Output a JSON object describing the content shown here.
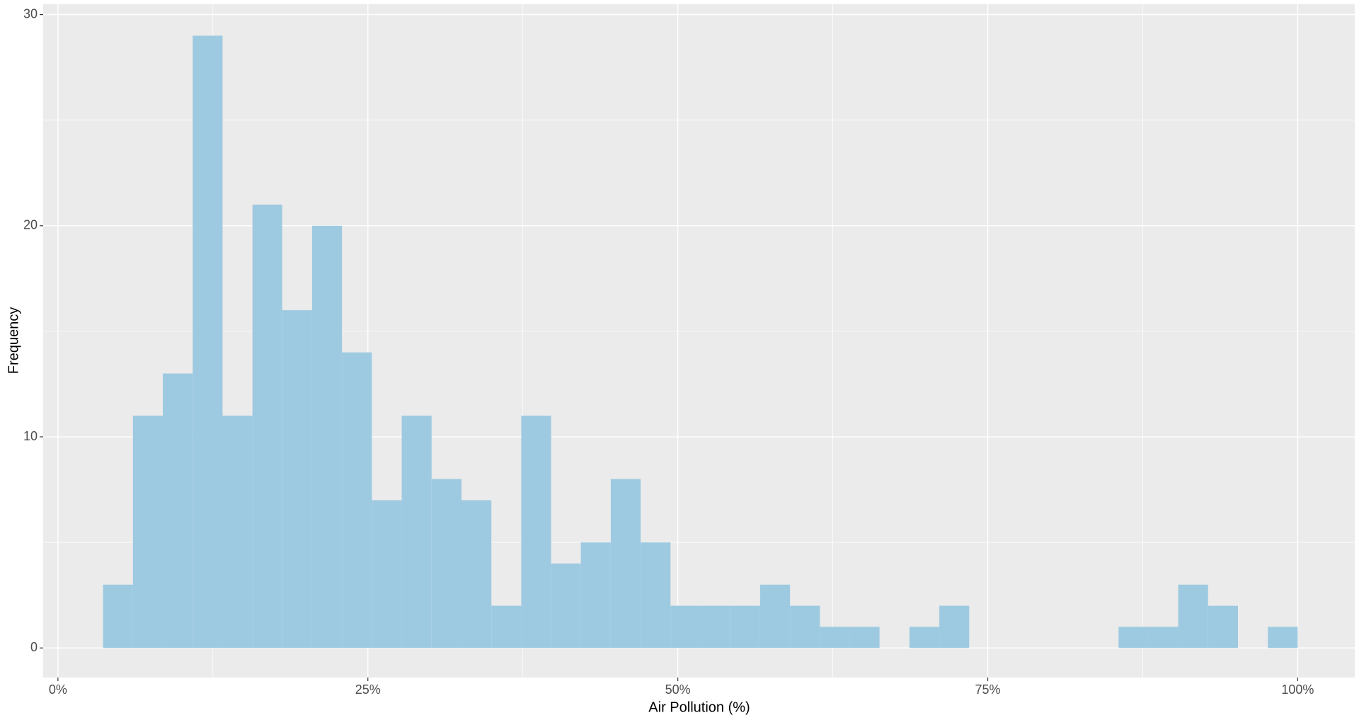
{
  "chart_data": {
    "type": "histogram",
    "x_label": "Air Pollution (%)",
    "y_label": "Frequency",
    "bins": [
      3.64,
      6.05,
      8.46,
      10.87,
      13.28,
      15.69,
      18.09,
      20.5,
      22.91,
      25.32,
      27.73,
      30.14,
      32.55,
      34.96,
      37.37,
      39.78,
      42.18,
      44.59,
      47.0,
      49.41,
      51.82,
      54.23,
      56.64,
      59.05,
      61.46,
      63.87,
      66.27,
      68.68,
      71.09,
      73.5,
      75.91,
      78.32,
      80.73,
      83.14,
      85.55,
      87.96,
      90.36,
      92.77,
      95.18,
      97.59,
      100.0
    ],
    "values": [
      3,
      11,
      13,
      29,
      11,
      21,
      16,
      20,
      14,
      7,
      11,
      8,
      7,
      2,
      11,
      4,
      5,
      8,
      5,
      2,
      2,
      2,
      3,
      2,
      1,
      1,
      0,
      1,
      2,
      0,
      0,
      0,
      0,
      0,
      1,
      1,
      3,
      2,
      0,
      1
    ],
    "color": "#9ECAE1",
    "xlim": [
      -1.19,
      104.6
    ],
    "ylim": [
      -1.4,
      30.49
    ],
    "xticks": [
      {
        "value": 0,
        "label": "0%"
      },
      {
        "value": 25,
        "label": "25%"
      },
      {
        "value": 50,
        "label": "50%"
      },
      {
        "value": 75,
        "label": "75%"
      },
      {
        "value": 100,
        "label": "100%"
      }
    ],
    "yticks": [
      0,
      10,
      20,
      30
    ],
    "grid": true,
    "minor_grid": true
  }
}
